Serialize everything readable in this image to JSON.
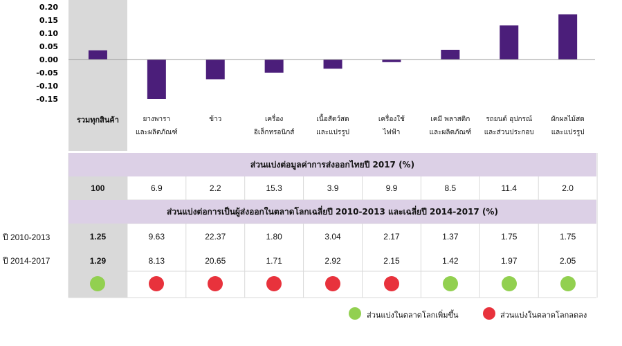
{
  "chart_data": {
    "type": "bar",
    "categories": [
      [
        "รวมทุกสินค้า"
      ],
      [
        "ยางพารา",
        "และผลิตภัณฑ์"
      ],
      [
        "ข้าว"
      ],
      [
        "เครื่อง",
        "อิเล็กทรอนิกส์"
      ],
      [
        "เนื้อสัตว์สด",
        "และแปรรูป"
      ],
      [
        "เครื่องใช้",
        "ไฟฟ้า"
      ],
      [
        "เคมี พลาสติก",
        "และผลิตภัณฑ์"
      ],
      [
        "รถยนต์ อุปกรณ์",
        "และส่วนประกอบ"
      ],
      [
        "ผักผลไม้สด",
        "และแปรรูป"
      ]
    ],
    "values": [
      0.035,
      -0.15,
      -0.075,
      -0.05,
      -0.035,
      -0.01,
      0.037,
      0.13,
      0.172
    ],
    "ylim": [
      -0.15,
      0.2
    ],
    "yticks": [
      "0.20",
      "0.15",
      "0.10",
      "0.05",
      "0.00",
      "-0.05",
      "-0.10",
      "-0.15"
    ],
    "colors": {
      "bar": "#4b1e7a",
      "highlight": "#d9d9d9",
      "axis": "#9a9a9a"
    }
  },
  "table": {
    "header1": "ส่วนแบ่งต่อมูลค่าการส่งออกไทยปี 2017 (%)",
    "share_row": [
      "100",
      "6.9",
      "2.2",
      "15.3",
      "3.9",
      "9.9",
      "8.5",
      "11.4",
      "2.0"
    ],
    "header2": "ส่วนแบ่งต่อการเป็นผู้ส่งออกในตลาดโลกเฉลี่ยปี 2010-2013 และเฉลี่ยปี 2014-2017 (%)",
    "row_2010_label": "ปี 2010-2013",
    "row_2010": [
      "1.25",
      "9.63",
      "22.37",
      "1.80",
      "3.04",
      "2.17",
      "1.37",
      "1.75",
      "1.75"
    ],
    "row_2014_label": "ปี 2014-2017",
    "row_2014": [
      "1.29",
      "8.13",
      "20.65",
      "1.71",
      "2.92",
      "2.15",
      "1.42",
      "1.97",
      "2.05"
    ],
    "dots": [
      "up",
      "down",
      "down",
      "down",
      "down",
      "down",
      "up",
      "up",
      "up"
    ]
  },
  "legend": {
    "up_label": "ส่วนแบ่งในตลาดโลกเพิ่มขึ้น",
    "down_label": "ส่วนแบ่งในตลาดโลกลดลง",
    "up_color": "#92d050",
    "down_color": "#e8323c"
  }
}
